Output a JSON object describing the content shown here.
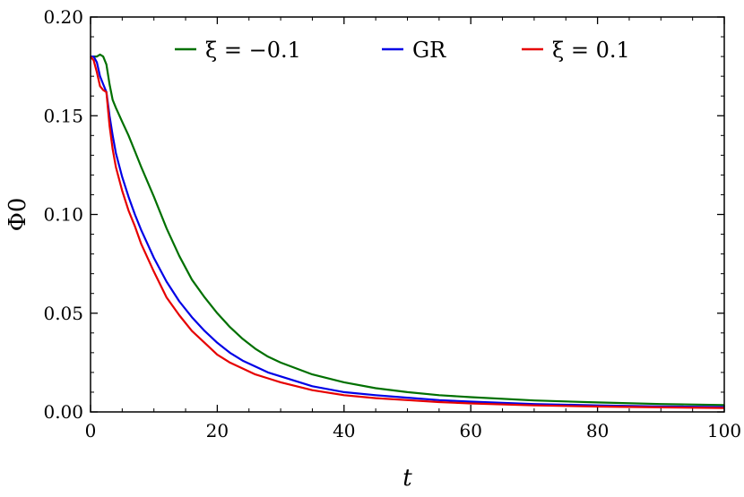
{
  "chart_data": {
    "type": "line",
    "xlabel": "t",
    "ylabel": "Φ0",
    "xlim": [
      0,
      100
    ],
    "ylim": [
      0,
      0.2
    ],
    "xticks": [
      0,
      20,
      40,
      60,
      80,
      100
    ],
    "yticks": [
      0.0,
      0.05,
      0.1,
      0.15,
      0.2
    ],
    "xtick_labels": [
      "0",
      "20",
      "40",
      "60",
      "80",
      "100"
    ],
    "ytick_labels": [
      "0.00",
      "0.05",
      "0.10",
      "0.15",
      "0.20"
    ],
    "legend_position": "top",
    "grid": false,
    "series": [
      {
        "name": "ξ = −0.1",
        "color": "#007000",
        "x": [
          0,
          0.5,
          1,
          1.5,
          2,
          2.5,
          3,
          3.5,
          4,
          5,
          6,
          7,
          8,
          10,
          12,
          14,
          16,
          18,
          20,
          22,
          24,
          26,
          28,
          30,
          35,
          40,
          45,
          50,
          55,
          60,
          70,
          80,
          90,
          100
        ],
        "y": [
          0.18,
          0.18,
          0.18,
          0.181,
          0.18,
          0.176,
          0.166,
          0.158,
          0.154,
          0.147,
          0.14,
          0.132,
          0.124,
          0.109,
          0.093,
          0.079,
          0.067,
          0.058,
          0.05,
          0.043,
          0.037,
          0.032,
          0.028,
          0.025,
          0.019,
          0.015,
          0.012,
          0.01,
          0.0085,
          0.0075,
          0.0058,
          0.0048,
          0.004,
          0.0035
        ]
      },
      {
        "name": "GR",
        "color": "#0000e6",
        "x": [
          0,
          0.5,
          1,
          1.5,
          2,
          2.5,
          3,
          3.5,
          4,
          5,
          6,
          7,
          8,
          10,
          12,
          14,
          16,
          18,
          20,
          22,
          24,
          26,
          28,
          30,
          35,
          40,
          45,
          50,
          55,
          60,
          70,
          80,
          90,
          100
        ],
        "y": [
          0.18,
          0.18,
          0.177,
          0.17,
          0.166,
          0.162,
          0.15,
          0.14,
          0.131,
          0.119,
          0.109,
          0.1,
          0.092,
          0.078,
          0.066,
          0.056,
          0.048,
          0.041,
          0.035,
          0.03,
          0.026,
          0.023,
          0.02,
          0.018,
          0.013,
          0.01,
          0.0085,
          0.0072,
          0.006,
          0.0052,
          0.004,
          0.0033,
          0.0028,
          0.0025
        ]
      },
      {
        "name": "ξ = 0.1",
        "color": "#e60000",
        "x": [
          0,
          0.5,
          1,
          1.5,
          2,
          2.5,
          3,
          3.5,
          4,
          5,
          6,
          7,
          8,
          10,
          12,
          14,
          16,
          18,
          20,
          22,
          24,
          26,
          28,
          30,
          35,
          40,
          45,
          50,
          55,
          60,
          70,
          80,
          90,
          100
        ],
        "y": [
          0.18,
          0.178,
          0.172,
          0.165,
          0.163,
          0.162,
          0.145,
          0.133,
          0.124,
          0.112,
          0.102,
          0.094,
          0.085,
          0.071,
          0.058,
          0.049,
          0.041,
          0.035,
          0.029,
          0.025,
          0.022,
          0.019,
          0.017,
          0.015,
          0.011,
          0.0085,
          0.007,
          0.006,
          0.005,
          0.0043,
          0.0033,
          0.0027,
          0.0023,
          0.002
        ]
      }
    ]
  }
}
